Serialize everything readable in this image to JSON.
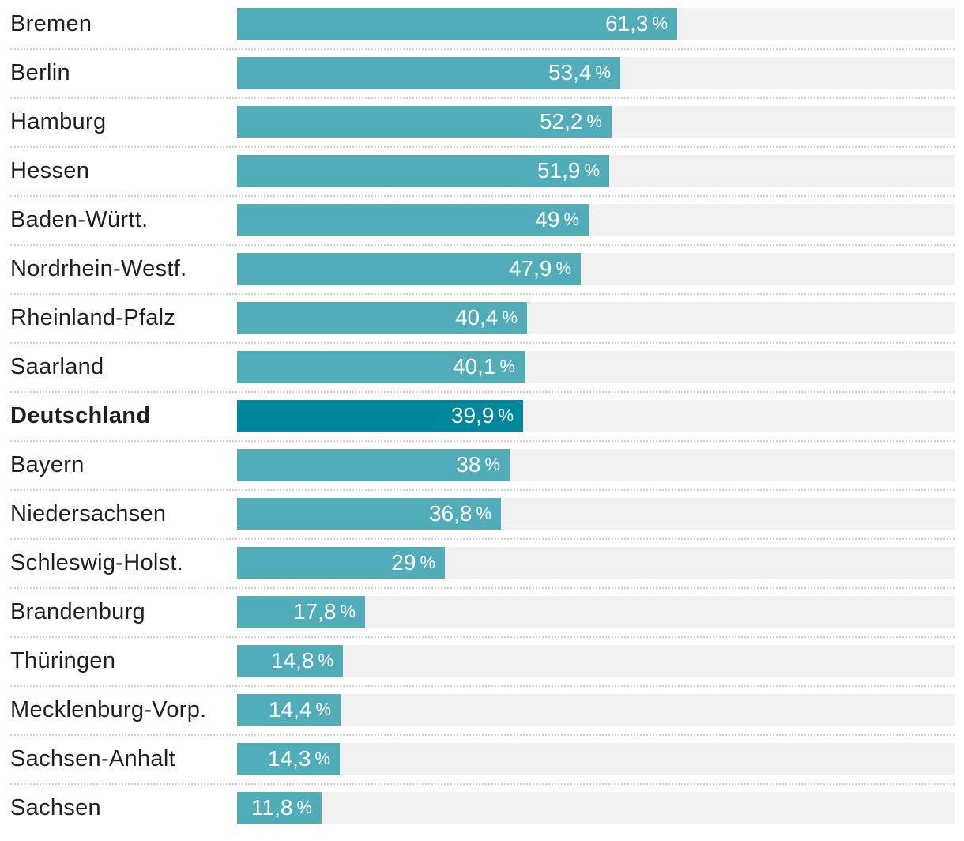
{
  "chart_data": {
    "type": "bar",
    "orientation": "horizontal",
    "unit": "%",
    "highlight": "Deutschland",
    "xlim": [
      0,
      100
    ],
    "categories": [
      "Bremen",
      "Berlin",
      "Hamburg",
      "Hessen",
      "Baden-Württ.",
      "Nordrhein-Westf.",
      "Rheinland-Pfalz",
      "Saarland",
      "Deutschland",
      "Bayern",
      "Niedersachsen",
      "Schleswig-Holst.",
      "Brandenburg",
      "Thüringen",
      "Mecklenburg-Vorp.",
      "Sachsen-Anhalt",
      "Sachsen"
    ],
    "values": [
      61.3,
      53.4,
      52.2,
      51.9,
      49,
      47.9,
      40.4,
      40.1,
      39.9,
      38,
      36.8,
      29,
      17.8,
      14.8,
      14.4,
      14.3,
      11.8
    ],
    "value_labels": [
      "61,3",
      "53,4",
      "52,2",
      "51,9",
      "49",
      "47,9",
      "40,4",
      "40,1",
      "39,9",
      "38",
      "36,8",
      "29",
      "17,8",
      "14,8",
      "14,4",
      "14,3",
      "11,8"
    ],
    "colors": {
      "bar": "#52adbb",
      "highlight": "#00879c",
      "track": "#f1f1f1",
      "divider": "#cfcfcf",
      "label": "#1f1f1f",
      "value": "#ffffff"
    }
  }
}
